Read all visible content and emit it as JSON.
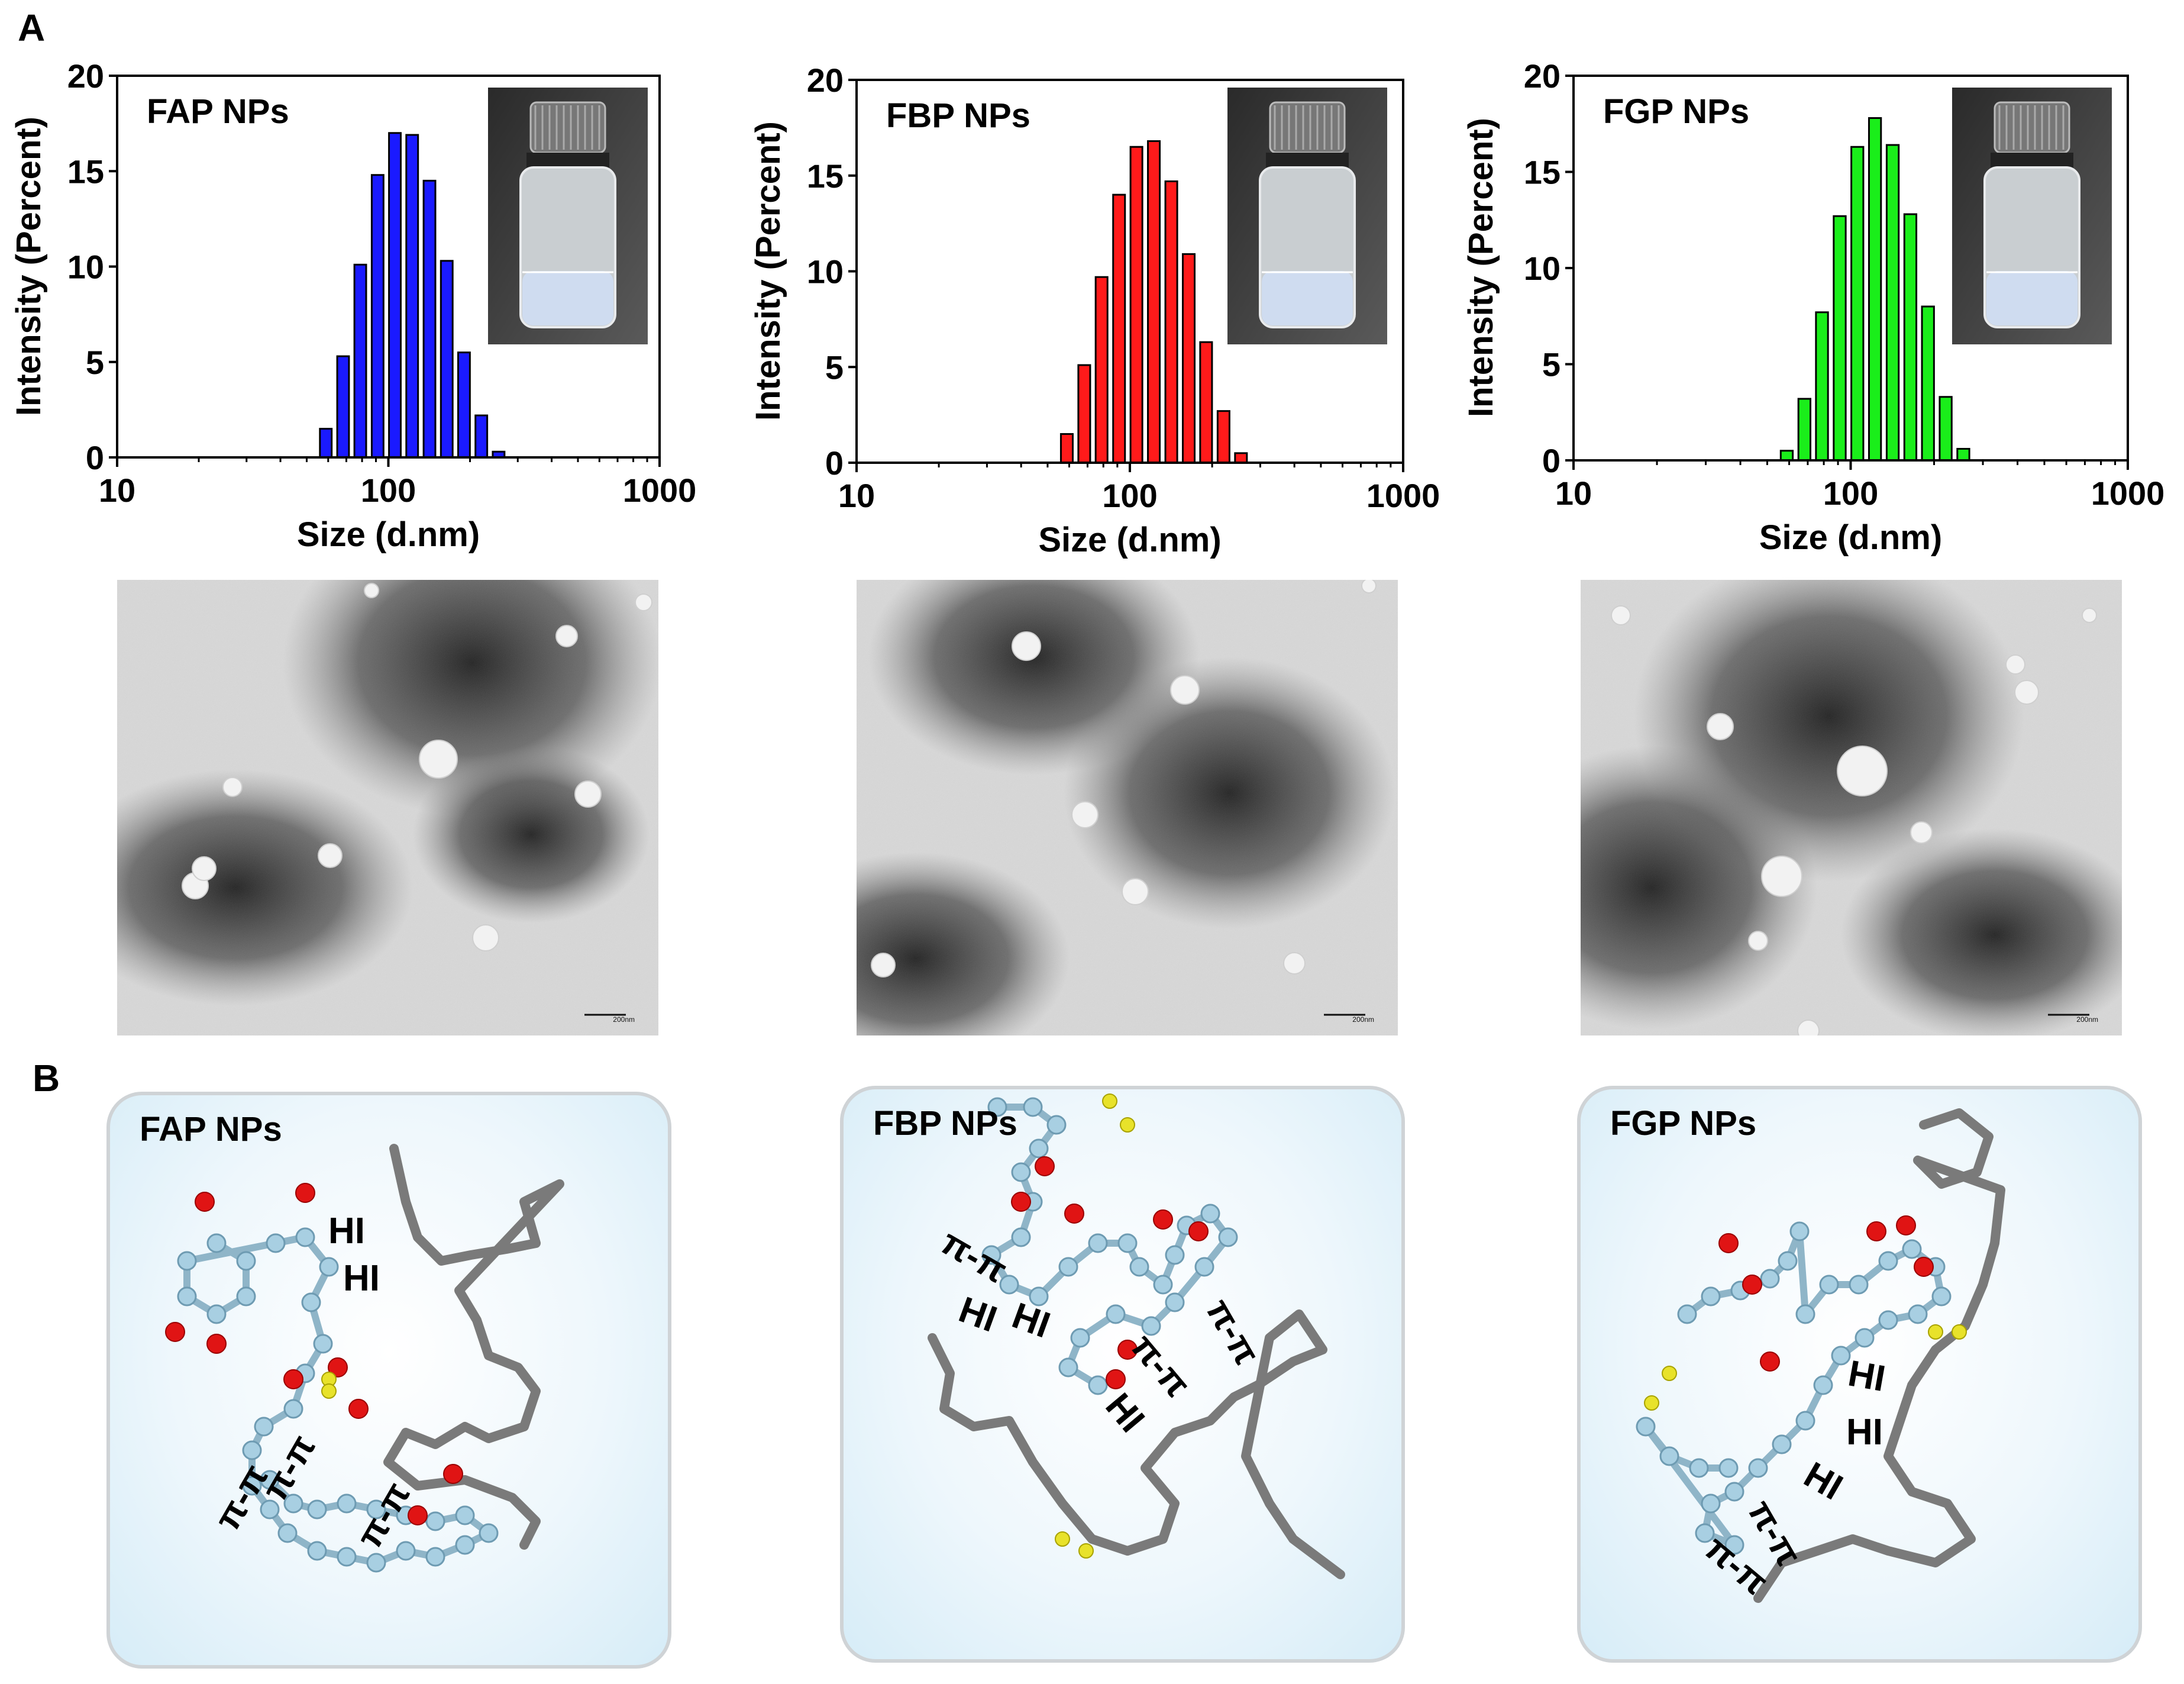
{
  "panel_labels": [
    "A",
    "B"
  ],
  "chart_data": [
    {
      "type": "bar",
      "title": "FAP NPs",
      "xlabel": "Size (d.nm)",
      "ylabel": "Intensity (Percent)",
      "xscale": "log",
      "xlim": [
        10,
        1000
      ],
      "ylim": [
        0,
        20
      ],
      "x_ticks": [
        "10",
        "100",
        "1000"
      ],
      "y_ticks": [
        "0",
        "5",
        "10",
        "15",
        "20"
      ],
      "color": "#1a1aff",
      "x": [
        58.8,
        68.1,
        78.8,
        91.3,
        105.7,
        122.4,
        141.8,
        164.2,
        190.1,
        220.2,
        255.0
      ],
      "values": [
        1.5,
        5.3,
        10.1,
        14.8,
        17.0,
        16.9,
        14.5,
        10.3,
        5.5,
        2.2,
        0.3
      ]
    },
    {
      "type": "bar",
      "title": "FBP NPs",
      "xlabel": "Size (d.nm)",
      "ylabel": "Intensity (Percent)",
      "xscale": "log",
      "xlim": [
        10,
        1000
      ],
      "ylim": [
        0,
        20
      ],
      "x_ticks": [
        "10",
        "100",
        "1000"
      ],
      "y_ticks": [
        "0",
        "5",
        "10",
        "15",
        "20"
      ],
      "color": "#ff1a1a",
      "x": [
        58.8,
        68.1,
        78.8,
        91.3,
        105.7,
        122.4,
        141.8,
        164.2,
        190.1,
        220.2,
        255.0
      ],
      "values": [
        1.5,
        5.1,
        9.7,
        14.0,
        16.5,
        16.8,
        14.7,
        10.9,
        6.3,
        2.7,
        0.5
      ]
    },
    {
      "type": "bar",
      "title": "FGP NPs",
      "xlabel": "Size (d.nm)",
      "ylabel": "Intensity (Percent)",
      "xscale": "log",
      "xlim": [
        10,
        1000
      ],
      "ylim": [
        0,
        20
      ],
      "x_ticks": [
        "10",
        "100",
        "1000"
      ],
      "y_ticks": [
        "0",
        "5",
        "10",
        "15",
        "20"
      ],
      "color": "#1aee1a",
      "x": [
        58.8,
        68.1,
        78.8,
        91.3,
        105.7,
        122.4,
        141.8,
        164.2,
        190.1,
        220.2,
        255.0
      ],
      "values": [
        0.5,
        3.2,
        7.7,
        12.7,
        16.3,
        17.8,
        16.4,
        12.8,
        8.0,
        3.3,
        0.6
      ]
    }
  ],
  "tem_scale_label": "200nm",
  "molecules": [
    {
      "title": "FAP NPs",
      "labels": [
        "HI",
        "HI",
        "π-π",
        "π-π",
        "π-π"
      ]
    },
    {
      "title": "FBP NPs",
      "labels": [
        "π-π",
        "HI",
        "HI",
        "π-π",
        "π-π",
        "HI"
      ]
    },
    {
      "title": "FGP NPs",
      "labels": [
        "HI",
        "HI",
        "HI",
        "π-π",
        "π-π"
      ]
    }
  ]
}
